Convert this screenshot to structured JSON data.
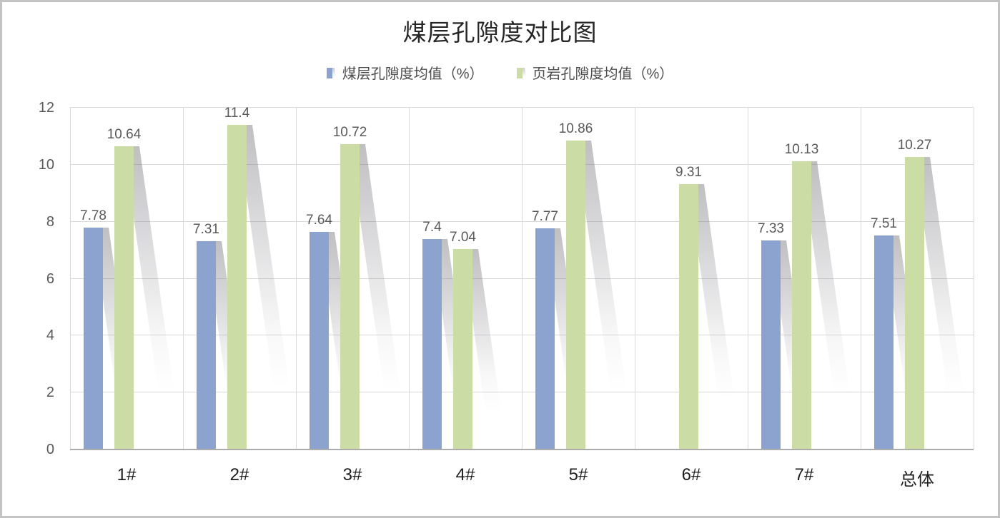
{
  "chart_data": {
    "type": "bar",
    "title": "煤层孔隙度对比图",
    "categories": [
      "1#",
      "2#",
      "3#",
      "4#",
      "5#",
      "6#",
      "7#",
      "总体"
    ],
    "series": [
      {
        "name": "煤层孔隙度均值（%）",
        "color": "#8CA3CF",
        "values": [
          7.78,
          7.31,
          7.64,
          7.4,
          7.77,
          null,
          7.33,
          7.51
        ]
      },
      {
        "name": "页岩孔隙度均值（%）",
        "color": "#CBDCA4",
        "values": [
          10.64,
          11.4,
          10.72,
          7.04,
          10.86,
          9.31,
          10.13,
          10.27
        ]
      }
    ],
    "data_labels": true,
    "ylim": [
      0,
      12
    ],
    "yticks": [
      0,
      2,
      4,
      6,
      8,
      10,
      12
    ],
    "grid": true,
    "legend_position": "top",
    "xlabel": "",
    "ylabel": ""
  },
  "colors": {
    "gridline": "#D9D9D9",
    "axis_line": "#ACACAC",
    "text_muted": "#595959",
    "text_dark": "#262626"
  }
}
